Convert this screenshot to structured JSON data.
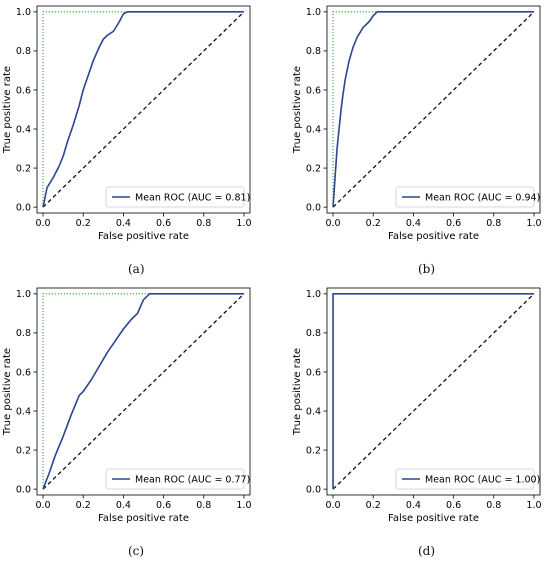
{
  "chart_data": [
    {
      "panel": "(a)",
      "type": "line",
      "xlabel": "False positive rate",
      "ylabel": "True positive rate",
      "xlim": [
        0,
        1
      ],
      "ylim": [
        0,
        1
      ],
      "xticks": [
        "0.0",
        "0.2",
        "0.4",
        "0.6",
        "0.8",
        "1.0"
      ],
      "yticks": [
        "0.0",
        "0.2",
        "0.4",
        "0.6",
        "0.8",
        "1.0"
      ],
      "legend": "Mean ROC (AUC = 0.81)",
      "legend_position": "bottom-right",
      "grid": false,
      "series": [
        {
          "role": "mean-roc",
          "x": [
            0,
            0.02,
            0.05,
            0.08,
            0.1,
            0.12,
            0.15,
            0.18,
            0.2,
            0.22,
            0.25,
            0.28,
            0.3,
            0.32,
            0.35,
            0.38,
            0.4,
            0.42,
            1.0
          ],
          "y": [
            0,
            0.1,
            0.15,
            0.21,
            0.26,
            0.33,
            0.42,
            0.52,
            0.6,
            0.66,
            0.75,
            0.82,
            0.86,
            0.88,
            0.9,
            0.95,
            0.99,
            1.0,
            1.0
          ]
        },
        {
          "role": "chance",
          "x": [
            0,
            1
          ],
          "y": [
            0,
            1
          ]
        },
        {
          "role": "perfect",
          "x": [
            0,
            0,
            1
          ],
          "y": [
            0,
            1,
            1
          ]
        }
      ],
      "colors": {
        "mean": "#2b4590",
        "chance": "#111111",
        "perfect": "#2ca02c"
      }
    },
    {
      "panel": "(b)",
      "type": "line",
      "xlabel": "False positive rate",
      "ylabel": "True positive rate",
      "xlim": [
        0,
        1
      ],
      "ylim": [
        0,
        1
      ],
      "xticks": [
        "0.0",
        "0.2",
        "0.4",
        "0.6",
        "0.8",
        "1.0"
      ],
      "yticks": [
        "0.0",
        "0.2",
        "0.4",
        "0.6",
        "0.8",
        "1.0"
      ],
      "legend": "Mean ROC (AUC = 0.94)",
      "legend_position": "bottom-right",
      "grid": false,
      "series": [
        {
          "role": "mean-roc",
          "x": [
            0,
            0.01,
            0.02,
            0.03,
            0.04,
            0.05,
            0.06,
            0.08,
            0.1,
            0.12,
            0.15,
            0.18,
            0.2,
            0.22,
            1.0
          ],
          "y": [
            0,
            0.15,
            0.3,
            0.4,
            0.5,
            0.58,
            0.65,
            0.75,
            0.82,
            0.87,
            0.92,
            0.95,
            0.98,
            1.0,
            1.0
          ]
        },
        {
          "role": "chance",
          "x": [
            0,
            1
          ],
          "y": [
            0,
            1
          ]
        },
        {
          "role": "perfect",
          "x": [
            0,
            0,
            1
          ],
          "y": [
            0,
            1,
            1
          ]
        }
      ],
      "colors": {
        "mean": "#2b4590",
        "chance": "#111111",
        "perfect": "#2ca02c"
      }
    },
    {
      "panel": "(c)",
      "type": "line",
      "xlabel": "False positive rate",
      "ylabel": "True positive rate",
      "xlim": [
        0,
        1
      ],
      "ylim": [
        0,
        1
      ],
      "xticks": [
        "0.0",
        "0.2",
        "0.4",
        "0.6",
        "0.8",
        "1.0"
      ],
      "yticks": [
        "0.0",
        "0.2",
        "0.4",
        "0.6",
        "0.8",
        "1.0"
      ],
      "legend": "Mean ROC (AUC = 0.77)",
      "legend_position": "bottom-right",
      "grid": false,
      "series": [
        {
          "role": "mean-roc",
          "x": [
            0,
            0.03,
            0.06,
            0.1,
            0.14,
            0.18,
            0.2,
            0.24,
            0.28,
            0.32,
            0.36,
            0.4,
            0.44,
            0.47,
            0.5,
            0.53,
            1.0
          ],
          "y": [
            0,
            0.08,
            0.17,
            0.27,
            0.38,
            0.48,
            0.5,
            0.56,
            0.63,
            0.7,
            0.76,
            0.82,
            0.87,
            0.9,
            0.97,
            1.0,
            1.0
          ]
        },
        {
          "role": "chance",
          "x": [
            0,
            1
          ],
          "y": [
            0,
            1
          ]
        },
        {
          "role": "perfect",
          "x": [
            0,
            0,
            1
          ],
          "y": [
            0,
            1,
            1
          ]
        }
      ],
      "colors": {
        "mean": "#2b4590",
        "chance": "#111111",
        "perfect": "#2ca02c"
      }
    },
    {
      "panel": "(d)",
      "type": "line",
      "xlabel": "False positive rate",
      "ylabel": "True positive rate",
      "xlim": [
        0,
        1
      ],
      "ylim": [
        0,
        1
      ],
      "xticks": [
        "0.0",
        "0.2",
        "0.4",
        "0.6",
        "0.8",
        "1.0"
      ],
      "yticks": [
        "0.0",
        "0.2",
        "0.4",
        "0.6",
        "0.8",
        "1.0"
      ],
      "legend": "Mean ROC (AUC = 1.00)",
      "legend_position": "bottom-right",
      "grid": false,
      "series": [
        {
          "role": "mean-roc",
          "x": [
            0,
            0,
            1
          ],
          "y": [
            0,
            1,
            1
          ]
        },
        {
          "role": "chance",
          "x": [
            0,
            1
          ],
          "y": [
            0,
            1
          ]
        },
        {
          "role": "perfect",
          "x": [
            0,
            0,
            1
          ],
          "y": [
            0,
            1,
            1
          ]
        }
      ],
      "colors": {
        "mean": "#2b4590",
        "chance": "#111111",
        "perfect": "#2ca02c"
      }
    }
  ]
}
